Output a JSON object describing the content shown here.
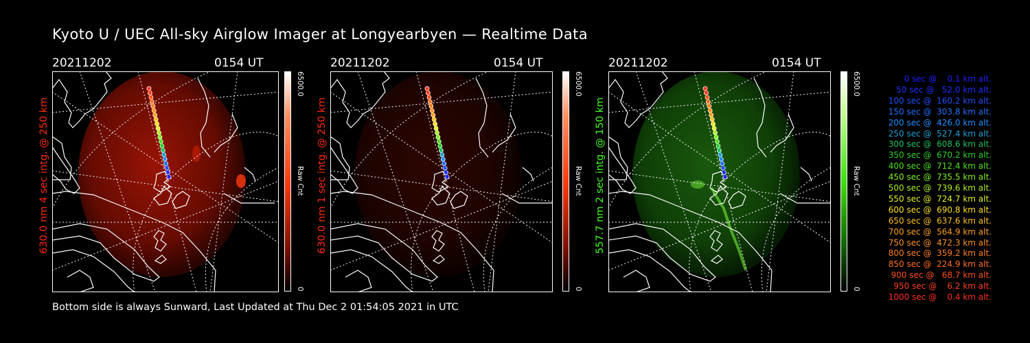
{
  "title": "Kyoto U / UEC All-sky Airglow Imager at Longyearbyen — Realtime Data",
  "footer": "Bottom side is always Sunward, Last Updated at Thu Dec  2 01:54:05 2021 in UTC",
  "colors": {
    "red_panel": "#ff2200",
    "green_panel": "#44ff00",
    "text": "#ffffff"
  },
  "panels": [
    {
      "date": "20211202",
      "time": "0154 UT",
      "side_label": "630.0 nm 4 sec intg. @ 250 km",
      "side_color": "#ff2a10",
      "cbar_max": "6500.0",
      "cbar_min": "0",
      "cbar_unit": "Raw Cnt",
      "image_color": "red",
      "brightness": "high"
    },
    {
      "date": "20211202",
      "time": "0154 UT",
      "side_label": "630.0 nm 1 sec intg. @ 250 km",
      "side_color": "#ff2a10",
      "cbar_max": "6500.0",
      "cbar_min": "0",
      "cbar_unit": "Raw Cnt",
      "image_color": "red",
      "brightness": "low"
    },
    {
      "date": "20211202",
      "time": "0154 UT",
      "side_label": "557.7 nm 2 sec intg. @ 150 km",
      "side_color": "#44ff22",
      "cbar_max": "6500.0",
      "cbar_min": "0",
      "cbar_unit": "Raw Cnt",
      "image_color": "green",
      "brightness": "medium"
    }
  ],
  "chart_data": {
    "type": "scatter",
    "title": "Kyoto U / UEC All-sky Airglow Imager at Longyearbyen — Realtime Data",
    "series_name": "trajectory",
    "legend": [
      {
        "label": "   0 sec @    0.1 km alt.",
        "color": "#2020ff",
        "sec": 0,
        "alt_km": 0.1
      },
      {
        "label": "  50 sec @   52.0 km alt.",
        "color": "#2030ff",
        "sec": 50,
        "alt_km": 52.0
      },
      {
        "label": " 100 sec @  160.2 km alt.",
        "color": "#2050ff",
        "sec": 100,
        "alt_km": 160.2
      },
      {
        "label": " 150 sec @  303.8 km alt.",
        "color": "#2070ff",
        "sec": 150,
        "alt_km": 303.8
      },
      {
        "label": " 200 sec @  426.0 km alt.",
        "color": "#2090ff",
        "sec": 200,
        "alt_km": 426.0
      },
      {
        "label": " 250 sec @  527.4 km alt.",
        "color": "#20a0d0",
        "sec": 250,
        "alt_km": 527.4
      },
      {
        "label": " 300 sec @  608.6 km alt.",
        "color": "#20c060",
        "sec": 300,
        "alt_km": 608.6
      },
      {
        "label": " 350 sec @  670.2 km alt.",
        "color": "#30d030",
        "sec": 350,
        "alt_km": 670.2
      },
      {
        "label": " 400 sec @  712.4 km alt.",
        "color": "#50e020",
        "sec": 400,
        "alt_km": 712.4
      },
      {
        "label": " 450 sec @  735.5 km alt.",
        "color": "#80f020",
        "sec": 450,
        "alt_km": 735.5
      },
      {
        "label": " 500 sec @  739.6 km alt.",
        "color": "#b0f020",
        "sec": 500,
        "alt_km": 739.6
      },
      {
        "label": " 550 sec @  724.7 km alt.",
        "color": "#e0f020",
        "sec": 550,
        "alt_km": 724.7
      },
      {
        "label": " 600 sec @  690.8 km alt.",
        "color": "#ffe020",
        "sec": 600,
        "alt_km": 690.8
      },
      {
        "label": " 650 sec @  637.6 km alt.",
        "color": "#ffc020",
        "sec": 650,
        "alt_km": 637.6
      },
      {
        "label": " 700 sec @  564.9 km alt.",
        "color": "#ffa020",
        "sec": 700,
        "alt_km": 564.9
      },
      {
        "label": " 750 sec @  472.3 km alt.",
        "color": "#ff9020",
        "sec": 750,
        "alt_km": 472.3
      },
      {
        "label": " 800 sec @  359.2 km alt.",
        "color": "#ff8020",
        "sec": 800,
        "alt_km": 359.2
      },
      {
        "label": " 850 sec @  224.9 km alt.",
        "color": "#ff7020",
        "sec": 850,
        "alt_km": 224.9
      },
      {
        "label": " 900 sec @   68.7 km alt.",
        "color": "#ff5020",
        "sec": 900,
        "alt_km": 68.7
      },
      {
        "label": " 950 sec @    6.2 km alt.",
        "color": "#ff4020",
        "sec": 950,
        "alt_km": 6.2
      },
      {
        "label": "1000 sec @    0.4 km alt.",
        "color": "#ff3020",
        "sec": 1000,
        "alt_km": 0.4
      }
    ]
  }
}
